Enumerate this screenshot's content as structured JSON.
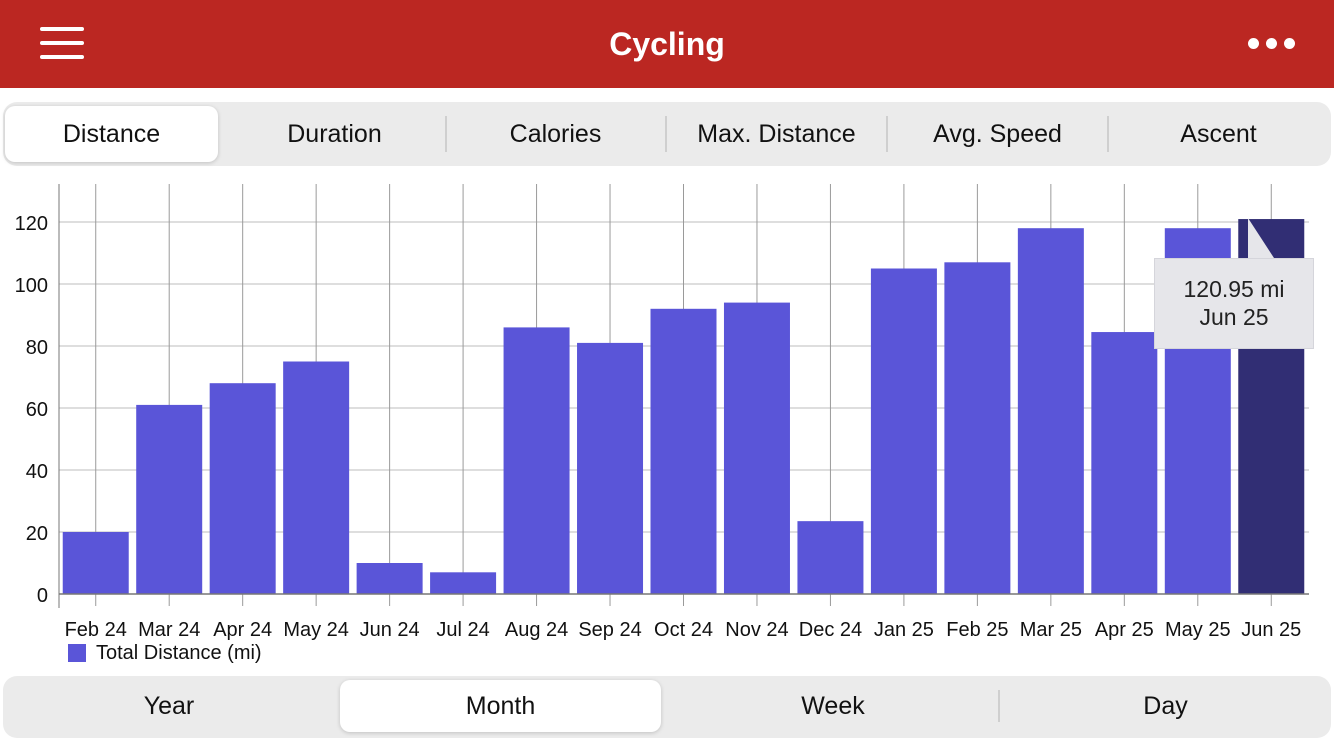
{
  "header": {
    "title": "Cycling",
    "background": "#bb2722",
    "left_icon": "hamburger-menu-icon",
    "right_icon": "more-options-icon"
  },
  "metric_tabs": {
    "items": [
      "Distance",
      "Duration",
      "Calories",
      "Max. Distance",
      "Avg. Speed",
      "Ascent"
    ],
    "selected": "Distance"
  },
  "period_tabs": {
    "items": [
      "Year",
      "Month",
      "Week",
      "Day"
    ],
    "selected": "Month"
  },
  "tooltip": {
    "value": "120.95 mi",
    "date": "Jun 25"
  },
  "chart_data": {
    "type": "bar",
    "categories": [
      "Feb 24",
      "Mar 24",
      "Apr 24",
      "May 24",
      "Jun 24",
      "Jul 24",
      "Aug 24",
      "Sep 24",
      "Oct 24",
      "Nov 24",
      "Dec 24",
      "Jan 25",
      "Feb 25",
      "Mar 25",
      "Apr 25",
      "May 25",
      "Jun 25"
    ],
    "series": [
      {
        "name": "Total Distance (mi)",
        "values": [
          20,
          61,
          68,
          75,
          10,
          7,
          86,
          81,
          92,
          94,
          23.5,
          105,
          107,
          118,
          84.5,
          118,
          120.95
        ]
      }
    ],
    "highlighted": "Jun 25",
    "ylim": [
      0,
      130
    ],
    "yticks": [
      0,
      20,
      40,
      60,
      80,
      100,
      120
    ],
    "grid": true,
    "legend_position": "bottom-left",
    "bar_color": "#5a55d8",
    "highlight_color": "#312e74"
  }
}
